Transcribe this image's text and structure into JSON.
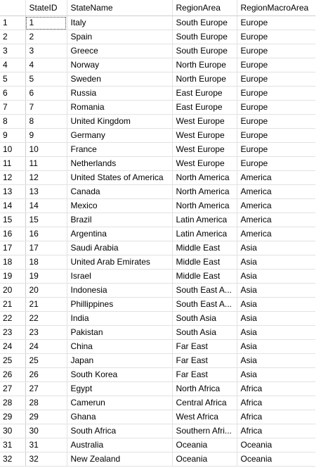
{
  "columns": {
    "rownum": "",
    "state_id": "StateID",
    "state_name": "StateName",
    "region_area": "RegionArea",
    "region_macro_area": "RegionMacroArea"
  },
  "rows": [
    {
      "n": "1",
      "id": "1",
      "name": "Italy",
      "region": "South Europe",
      "macro": "Europe"
    },
    {
      "n": "2",
      "id": "2",
      "name": "Spain",
      "region": "South Europe",
      "macro": "Europe"
    },
    {
      "n": "3",
      "id": "3",
      "name": "Greece",
      "region": "South Europe",
      "macro": "Europe"
    },
    {
      "n": "4",
      "id": "4",
      "name": "Norway",
      "region": "North Europe",
      "macro": "Europe"
    },
    {
      "n": "5",
      "id": "5",
      "name": "Sweden",
      "region": "North Europe",
      "macro": "Europe"
    },
    {
      "n": "6",
      "id": "6",
      "name": "Russia",
      "region": "East Europe",
      "macro": "Europe"
    },
    {
      "n": "7",
      "id": "7",
      "name": "Romania",
      "region": "East Europe",
      "macro": "Europe"
    },
    {
      "n": "8",
      "id": "8",
      "name": "United Kingdom",
      "region": "West Europe",
      "macro": "Europe"
    },
    {
      "n": "9",
      "id": "9",
      "name": "Germany",
      "region": "West Europe",
      "macro": "Europe"
    },
    {
      "n": "10",
      "id": "10",
      "name": "France",
      "region": "West Europe",
      "macro": "Europe"
    },
    {
      "n": "11",
      "id": "11",
      "name": "Netherlands",
      "region": "West Europe",
      "macro": "Europe"
    },
    {
      "n": "12",
      "id": "12",
      "name": "United States of America",
      "region": "North America",
      "macro": "America"
    },
    {
      "n": "13",
      "id": "13",
      "name": "Canada",
      "region": "North America",
      "macro": "America"
    },
    {
      "n": "14",
      "id": "14",
      "name": "Mexico",
      "region": "North America",
      "macro": "America"
    },
    {
      "n": "15",
      "id": "15",
      "name": "Brazil",
      "region": "Latin America",
      "macro": "America"
    },
    {
      "n": "16",
      "id": "16",
      "name": "Argentina",
      "region": "Latin America",
      "macro": "America"
    },
    {
      "n": "17",
      "id": "17",
      "name": "Saudi Arabia",
      "region": "Middle East",
      "macro": "Asia"
    },
    {
      "n": "18",
      "id": "18",
      "name": "United Arab Emirates",
      "region": "Middle East",
      "macro": "Asia"
    },
    {
      "n": "19",
      "id": "19",
      "name": "Israel",
      "region": "Middle East",
      "macro": "Asia"
    },
    {
      "n": "20",
      "id": "20",
      "name": "Indonesia",
      "region": "South East A...",
      "macro": "Asia"
    },
    {
      "n": "21",
      "id": "21",
      "name": "Phillippines",
      "region": "South East A...",
      "macro": "Asia"
    },
    {
      "n": "22",
      "id": "22",
      "name": "India",
      "region": "South Asia",
      "macro": "Asia"
    },
    {
      "n": "23",
      "id": "23",
      "name": "Pakistan",
      "region": "South Asia",
      "macro": "Asia"
    },
    {
      "n": "24",
      "id": "24",
      "name": "China",
      "region": "Far East",
      "macro": "Asia"
    },
    {
      "n": "25",
      "id": "25",
      "name": "Japan",
      "region": "Far East",
      "macro": "Asia"
    },
    {
      "n": "26",
      "id": "26",
      "name": "South Korea",
      "region": "Far East",
      "macro": "Asia"
    },
    {
      "n": "27",
      "id": "27",
      "name": "Egypt",
      "region": "North Africa",
      "macro": "Africa"
    },
    {
      "n": "28",
      "id": "28",
      "name": "Camerun",
      "region": "Central Africa",
      "macro": "Africa"
    },
    {
      "n": "29",
      "id": "29",
      "name": "Ghana",
      "region": "West Africa",
      "macro": "Africa"
    },
    {
      "n": "30",
      "id": "30",
      "name": "South Africa",
      "region": "Southern Afri...",
      "macro": "Africa"
    },
    {
      "n": "31",
      "id": "31",
      "name": "Australia",
      "region": "Oceania",
      "macro": "Oceania"
    },
    {
      "n": "32",
      "id": "32",
      "name": "New Zealand",
      "region": "Oceania",
      "macro": "Oceania"
    }
  ],
  "selected_row_index": 0
}
